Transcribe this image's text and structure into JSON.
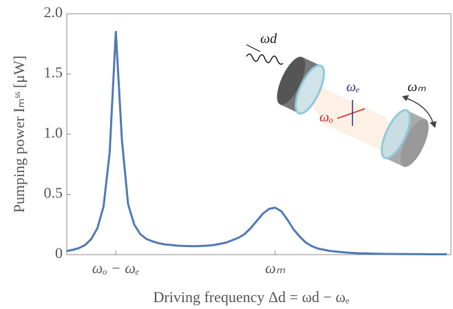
{
  "chart_data": {
    "type": "line",
    "x_label": "Driving frequency  Δd = ωd − ωₑ",
    "y_label": "Pumping power  Iₘˢˢ [μW]",
    "annotations": [
      "ωd",
      "ωₑ",
      "ωₒ",
      "ωₘ"
    ],
    "categories": [
      null,
      null,
      null,
      null,
      null,
      null,
      null,
      null,
      "ωₒ − ωₑ",
      null,
      null,
      null,
      null,
      null,
      null,
      null,
      null,
      null,
      null,
      null,
      null,
      null,
      null,
      null,
      null,
      null,
      null,
      null,
      null,
      null,
      null,
      null,
      null,
      null,
      "ωₘ",
      null,
      null,
      null,
      null,
      null,
      null,
      null,
      null,
      null,
      null,
      null,
      null,
      null,
      null,
      null,
      null,
      null,
      null,
      null,
      null,
      null,
      null,
      null,
      null,
      null,
      null,
      null,
      null
    ],
    "values": [
      0.03,
      0.04,
      0.055,
      0.08,
      0.13,
      0.22,
      0.4,
      0.85,
      1.85,
      0.95,
      0.42,
      0.25,
      0.17,
      0.13,
      0.11,
      0.095,
      0.085,
      0.08,
      0.075,
      0.072,
      0.071,
      0.07,
      0.072,
      0.075,
      0.08,
      0.09,
      0.1,
      0.12,
      0.14,
      0.17,
      0.22,
      0.28,
      0.34,
      0.38,
      0.39,
      0.36,
      0.29,
      0.21,
      0.15,
      0.1,
      0.07,
      0.05,
      0.04,
      0.03,
      0.025,
      0.02,
      0.016,
      0.013,
      0.011,
      0.01,
      0.008,
      0.007,
      0.006,
      0.006,
      0.005,
      0.005,
      0.004,
      0.004,
      0.004,
      0.003,
      0.003,
      0.003,
      0.003
    ],
    "color": "#4f79b5",
    "ylim": [
      0,
      2.0
    ],
    "yticks": [
      0,
      0.5,
      {
        "value": 1.0,
        "label": "1.0"
      },
      1.5,
      {
        "value": 2.0,
        "label": "2.0"
      }
    ]
  }
}
